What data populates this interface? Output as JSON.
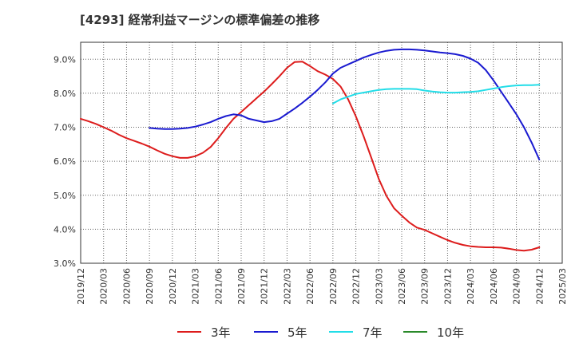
{
  "chart_data": {
    "type": "line",
    "title": "[4293]  経常利益マージンの標準偏差の推移",
    "xlabel": "",
    "ylabel": "",
    "x_ticks": [
      "2019/12",
      "2020/03",
      "2020/06",
      "2020/09",
      "2020/12",
      "2021/03",
      "2021/06",
      "2021/09",
      "2021/12",
      "2022/03",
      "2022/06",
      "2022/09",
      "2022/12",
      "2023/03",
      "2023/06",
      "2023/09",
      "2023/12",
      "2024/03",
      "2024/06",
      "2024/09",
      "2024/12",
      "2025/03"
    ],
    "y_ticks": [
      "3.0%",
      "4.0%",
      "5.0%",
      "6.0%",
      "7.0%",
      "8.0%",
      "9.0%"
    ],
    "ylim": [
      3.0,
      9.5
    ],
    "grid": true,
    "legend_position": "bottom",
    "series": [
      {
        "name": "3年",
        "color": "#dd1c1c",
        "points": [
          [
            "2019/12",
            7.25
          ],
          [
            "2020/01",
            7.18
          ],
          [
            "2020/02",
            7.1
          ],
          [
            "2020/03",
            7.0
          ],
          [
            "2020/04",
            6.9
          ],
          [
            "2020/05",
            6.78
          ],
          [
            "2020/06",
            6.68
          ],
          [
            "2020/07",
            6.6
          ],
          [
            "2020/08",
            6.52
          ],
          [
            "2020/09",
            6.43
          ],
          [
            "2020/10",
            6.32
          ],
          [
            "2020/11",
            6.22
          ],
          [
            "2020/12",
            6.15
          ],
          [
            "2021/01",
            6.1
          ],
          [
            "2021/02",
            6.1
          ],
          [
            "2021/03",
            6.15
          ],
          [
            "2021/04",
            6.25
          ],
          [
            "2021/05",
            6.42
          ],
          [
            "2021/06",
            6.68
          ],
          [
            "2021/07",
            6.98
          ],
          [
            "2021/08",
            7.25
          ],
          [
            "2021/09",
            7.45
          ],
          [
            "2021/10",
            7.65
          ],
          [
            "2021/11",
            7.85
          ],
          [
            "2021/12",
            8.05
          ],
          [
            "2022/01",
            8.27
          ],
          [
            "2022/02",
            8.5
          ],
          [
            "2022/03",
            8.75
          ],
          [
            "2022/04",
            8.92
          ],
          [
            "2022/05",
            8.93
          ],
          [
            "2022/06",
            8.8
          ],
          [
            "2022/07",
            8.65
          ],
          [
            "2022/08",
            8.55
          ],
          [
            "2022/09",
            8.42
          ],
          [
            "2022/10",
            8.2
          ],
          [
            "2022/11",
            7.82
          ],
          [
            "2022/12",
            7.32
          ],
          [
            "2023/01",
            6.75
          ],
          [
            "2023/02",
            6.12
          ],
          [
            "2023/03",
            5.48
          ],
          [
            "2023/04",
            4.98
          ],
          [
            "2023/05",
            4.62
          ],
          [
            "2023/06",
            4.4
          ],
          [
            "2023/07",
            4.2
          ],
          [
            "2023/08",
            4.05
          ],
          [
            "2023/09",
            3.98
          ],
          [
            "2023/10",
            3.88
          ],
          [
            "2023/11",
            3.78
          ],
          [
            "2023/12",
            3.68
          ],
          [
            "2024/01",
            3.6
          ],
          [
            "2024/02",
            3.54
          ],
          [
            "2024/03",
            3.5
          ],
          [
            "2024/04",
            3.48
          ],
          [
            "2024/05",
            3.47
          ],
          [
            "2024/06",
            3.47
          ],
          [
            "2024/07",
            3.46
          ],
          [
            "2024/08",
            3.43
          ],
          [
            "2024/09",
            3.39
          ],
          [
            "2024/10",
            3.37
          ],
          [
            "2024/11",
            3.4
          ],
          [
            "2024/12",
            3.47
          ]
        ]
      },
      {
        "name": "5年",
        "color": "#1a1ad0",
        "points": [
          [
            "2020/09",
            6.98
          ],
          [
            "2020/10",
            6.96
          ],
          [
            "2020/11",
            6.95
          ],
          [
            "2020/12",
            6.95
          ],
          [
            "2021/01",
            6.96
          ],
          [
            "2021/02",
            6.98
          ],
          [
            "2021/03",
            7.02
          ],
          [
            "2021/04",
            7.08
          ],
          [
            "2021/05",
            7.15
          ],
          [
            "2021/06",
            7.25
          ],
          [
            "2021/07",
            7.33
          ],
          [
            "2021/08",
            7.38
          ],
          [
            "2021/09",
            7.35
          ],
          [
            "2021/10",
            7.25
          ],
          [
            "2021/11",
            7.2
          ],
          [
            "2021/12",
            7.15
          ],
          [
            "2022/01",
            7.18
          ],
          [
            "2022/02",
            7.25
          ],
          [
            "2022/03",
            7.4
          ],
          [
            "2022/04",
            7.55
          ],
          [
            "2022/05",
            7.72
          ],
          [
            "2022/06",
            7.9
          ],
          [
            "2022/07",
            8.1
          ],
          [
            "2022/08",
            8.32
          ],
          [
            "2022/09",
            8.58
          ],
          [
            "2022/10",
            8.75
          ],
          [
            "2022/11",
            8.85
          ],
          [
            "2022/12",
            8.95
          ],
          [
            "2023/01",
            9.05
          ],
          [
            "2023/02",
            9.13
          ],
          [
            "2023/03",
            9.2
          ],
          [
            "2023/04",
            9.25
          ],
          [
            "2023/05",
            9.28
          ],
          [
            "2023/06",
            9.29
          ],
          [
            "2023/07",
            9.29
          ],
          [
            "2023/08",
            9.28
          ],
          [
            "2023/09",
            9.26
          ],
          [
            "2023/10",
            9.23
          ],
          [
            "2023/11",
            9.2
          ],
          [
            "2023/12",
            9.18
          ],
          [
            "2024/01",
            9.15
          ],
          [
            "2024/02",
            9.1
          ],
          [
            "2024/03",
            9.02
          ],
          [
            "2024/04",
            8.9
          ],
          [
            "2024/05",
            8.68
          ],
          [
            "2024/06",
            8.38
          ],
          [
            "2024/07",
            8.05
          ],
          [
            "2024/08",
            7.72
          ],
          [
            "2024/09",
            7.38
          ],
          [
            "2024/10",
            7.0
          ],
          [
            "2024/11",
            6.55
          ],
          [
            "2024/12",
            6.05
          ]
        ]
      },
      {
        "name": "7年",
        "color": "#22dde8",
        "points": [
          [
            "2022/09",
            7.7
          ],
          [
            "2022/10",
            7.82
          ],
          [
            "2022/11",
            7.9
          ],
          [
            "2022/12",
            7.98
          ],
          [
            "2023/01",
            8.02
          ],
          [
            "2023/02",
            8.06
          ],
          [
            "2023/03",
            8.1
          ],
          [
            "2023/04",
            8.12
          ],
          [
            "2023/05",
            8.13
          ],
          [
            "2023/06",
            8.13
          ],
          [
            "2023/07",
            8.13
          ],
          [
            "2023/08",
            8.12
          ],
          [
            "2023/09",
            8.08
          ],
          [
            "2023/10",
            8.05
          ],
          [
            "2023/11",
            8.03
          ],
          [
            "2023/12",
            8.02
          ],
          [
            "2024/01",
            8.02
          ],
          [
            "2024/02",
            8.03
          ],
          [
            "2024/03",
            8.04
          ],
          [
            "2024/04",
            8.06
          ],
          [
            "2024/05",
            8.1
          ],
          [
            "2024/06",
            8.14
          ],
          [
            "2024/07",
            8.18
          ],
          [
            "2024/08",
            8.21
          ],
          [
            "2024/09",
            8.23
          ],
          [
            "2024/10",
            8.24
          ],
          [
            "2024/11",
            8.24
          ],
          [
            "2024/12",
            8.25
          ]
        ]
      },
      {
        "name": "10年",
        "color": "#2a8a2a",
        "points": []
      }
    ]
  }
}
